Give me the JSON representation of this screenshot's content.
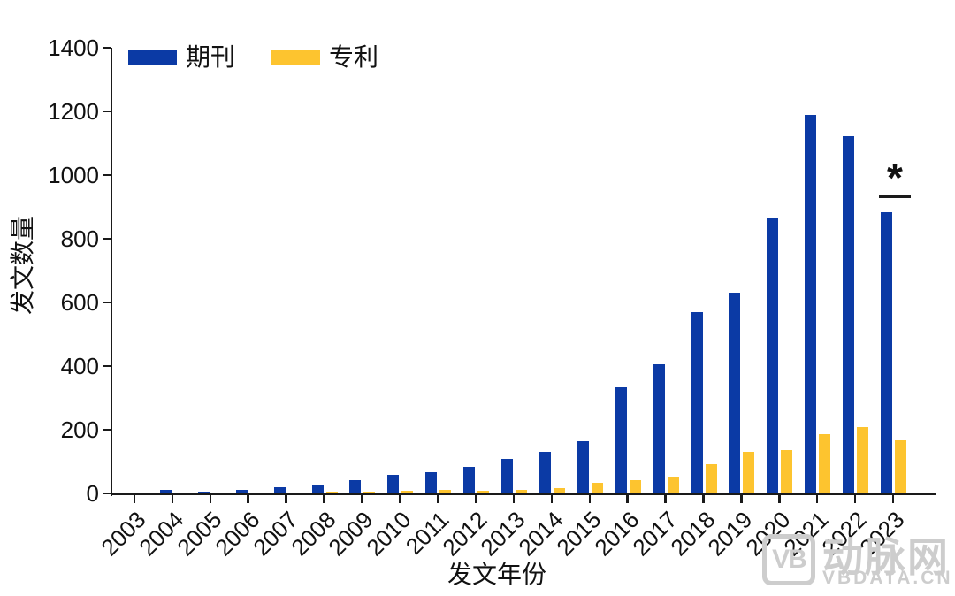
{
  "chart_data": {
    "type": "bar",
    "title": "",
    "xlabel": "发文年份",
    "ylabel": "发文数量",
    "ylim": [
      0,
      1400
    ],
    "ytick_step": 200,
    "grid": false,
    "legend_position": "top-left-inside",
    "categories": [
      "2003",
      "2004",
      "2005",
      "2006",
      "2007",
      "2008",
      "2009",
      "2010",
      "2011",
      "2012",
      "2013",
      "2014",
      "2015",
      "2016",
      "2017",
      "2018",
      "2019",
      "2020",
      "2021",
      "2022",
      "2023"
    ],
    "series": [
      {
        "id": "journal",
        "name": "期刊",
        "color": "#0b3aa5",
        "values": [
          4,
          12,
          6,
          10,
          20,
          28,
          43,
          58,
          67,
          84,
          108,
          130,
          163,
          333,
          405,
          570,
          630,
          868,
          1190,
          1122,
          883
        ]
      },
      {
        "id": "patent",
        "name": "专利",
        "color": "#fdc42f",
        "values": [
          0,
          0,
          2,
          2,
          3,
          5,
          5,
          7,
          12,
          8,
          12,
          16,
          32,
          43,
          52,
          92,
          130,
          135,
          185,
          208,
          168
        ]
      }
    ],
    "annotation": {
      "category": "2023",
      "series": "期刊",
      "label": "*"
    }
  },
  "watermark": {
    "logo_text": "VB",
    "brand": "动脉网",
    "site": "VBDATA.CN"
  },
  "colors": {
    "axis": "#1a1a1a",
    "text": "#111111",
    "watermark": "#cdcdcd",
    "background": "#ffffff"
  }
}
